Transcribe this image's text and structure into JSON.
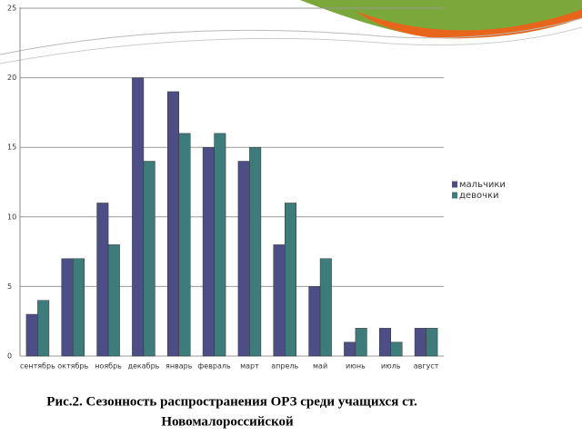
{
  "chart_data": {
    "type": "bar",
    "caption": [
      "Рис.2. Сезонность распространения ОРЗ среди учащихся ст.",
      "Новомалороссийской"
    ],
    "categories": [
      "сентябрь",
      "октябрь",
      "ноябрь",
      "декабрь",
      "январь",
      "февраль",
      "март",
      "апрель",
      "май",
      "июнь",
      "июль",
      "август"
    ],
    "series": [
      {
        "name": "мальчики",
        "color": "#4e4e86",
        "values": [
          3,
          7,
          11,
          20,
          19,
          15,
          14,
          8,
          5,
          1,
          2,
          2
        ]
      },
      {
        "name": "девочки",
        "color": "#3e7c7c",
        "values": [
          4,
          7,
          8,
          14,
          16,
          16,
          15,
          11,
          7,
          2,
          1,
          2
        ]
      }
    ],
    "ylim": [
      0,
      25
    ],
    "yticks": [
      0,
      5,
      10,
      15,
      20,
      25
    ],
    "grid": true,
    "legend": "right"
  }
}
